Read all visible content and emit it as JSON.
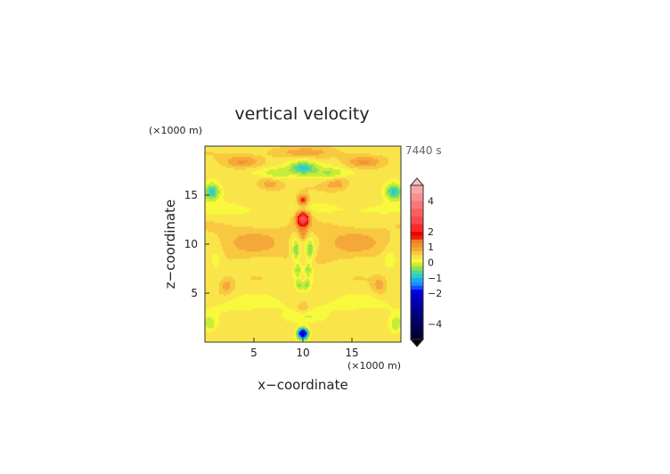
{
  "chart_data": {
    "type": "heatmap",
    "title": "vertical velocity",
    "time_label": "7440 s",
    "xlabel": "x−coordinate",
    "ylabel": "z−coordinate",
    "x_unit": "(×1000 m)",
    "y_unit": "(×1000 m)",
    "xlim": [
      0,
      20
    ],
    "ylim": [
      0,
      20
    ],
    "xticks": [
      5,
      10,
      15
    ],
    "yticks": [
      5,
      10,
      15
    ],
    "grid": false,
    "colorbar": {
      "levels": [
        -5,
        -4.5,
        -4,
        -3.5,
        -3,
        -2.5,
        -2,
        -1.75,
        -1.5,
        -1.25,
        -1,
        -0.75,
        -0.5,
        -0.25,
        0,
        0.25,
        0.5,
        0.75,
        1,
        1.25,
        1.5,
        1.75,
        2,
        2.5,
        3,
        3.5,
        4,
        4.5,
        5
      ],
      "colors": [
        "#000033",
        "#00004c",
        "#000066",
        "#000085",
        "#0000a6",
        "#0000c8",
        "#0000ee",
        "#1050ff",
        "#1e90ff",
        "#14b0ee",
        "#27ccd0",
        "#4ed6a0",
        "#94e04a",
        "#c8ec3a",
        "#f8f83c",
        "#f9e44a",
        "#f8c840",
        "#f5a83a",
        "#f3932e",
        "#f08025",
        "#ee2010",
        "#f00000",
        "#f82a2a",
        "#f84848",
        "#f86060",
        "#f87878",
        "#f89090",
        "#f8a8a8"
      ],
      "tick_labels": [
        "4",
        "2",
        "1",
        "0",
        "−1",
        "−2",
        "−4"
      ],
      "tick_values": [
        4,
        2,
        1,
        0,
        -1,
        -2,
        -4
      ]
    },
    "features": [
      {
        "x": 10,
        "z": 12.6,
        "w": 2.6,
        "sx": 0.45,
        "sz": 0.5
      },
      {
        "x": 10,
        "z": 14.5,
        "w": 1.4,
        "sx": 0.35,
        "sz": 0.35
      },
      {
        "x": 10,
        "z": 11.2,
        "w": 0.6,
        "sx": 0.35,
        "sz": 0.6
      },
      {
        "x": 10,
        "z": 6.2,
        "w": 0.8,
        "sx": 0.35,
        "sz": 0.6
      },
      {
        "x": 10,
        "z": 3.5,
        "w": 0.5,
        "sx": 0.4,
        "sz": 0.4
      },
      {
        "x": 10,
        "z": 0.9,
        "w": -3.0,
        "sx": 0.4,
        "sz": 0.4
      },
      {
        "x": 10,
        "z": 17.8,
        "w": -1.1,
        "sx": 1.0,
        "sz": 0.5
      },
      {
        "x": 9.3,
        "z": 9.4,
        "w": -0.9,
        "sx": 0.3,
        "sz": 0.8
      },
      {
        "x": 10.7,
        "z": 9.4,
        "w": -0.9,
        "sx": 0.3,
        "sz": 0.8
      },
      {
        "x": 9.5,
        "z": 7.4,
        "w": -0.7,
        "sx": 0.3,
        "sz": 0.5
      },
      {
        "x": 10.5,
        "z": 7.4,
        "w": -0.7,
        "sx": 0.3,
        "sz": 0.5
      },
      {
        "x": 9.7,
        "z": 5.9,
        "w": -1.0,
        "sx": 0.3,
        "sz": 0.5
      },
      {
        "x": 10.3,
        "z": 5.9,
        "w": -1.0,
        "sx": 0.3,
        "sz": 0.5
      },
      {
        "x": 10,
        "z": 2.6,
        "w": -0.3,
        "sx": 1.5,
        "sz": 0.4
      },
      {
        "x": 4.9,
        "z": 10.2,
        "w": 0.45,
        "sx": 2.6,
        "sz": 1.3
      },
      {
        "x": 15.1,
        "z": 10.2,
        "w": 0.45,
        "sx": 2.6,
        "sz": 1.3
      },
      {
        "x": 3.8,
        "z": 18.4,
        "w": 0.7,
        "sx": 1.4,
        "sz": 0.5
      },
      {
        "x": 16.2,
        "z": 18.4,
        "w": 0.7,
        "sx": 1.4,
        "sz": 0.5
      },
      {
        "x": 6.6,
        "z": 16.2,
        "w": 0.6,
        "sx": 0.9,
        "sz": 0.5
      },
      {
        "x": 13.4,
        "z": 16.2,
        "w": 0.6,
        "sx": 0.9,
        "sz": 0.5
      },
      {
        "x": 7.3,
        "z": 17.2,
        "w": -0.55,
        "sx": 1.0,
        "sz": 0.45
      },
      {
        "x": 12.7,
        "z": 17.2,
        "w": -0.55,
        "sx": 1.0,
        "sz": 0.45
      },
      {
        "x": 5.0,
        "z": 17.5,
        "w": -0.3,
        "sx": 1.8,
        "sz": 0.5
      },
      {
        "x": 15.0,
        "z": 17.5,
        "w": -0.3,
        "sx": 1.8,
        "sz": 0.5
      },
      {
        "x": 0.7,
        "z": 15.4,
        "w": -1.3,
        "sx": 0.6,
        "sz": 0.6
      },
      {
        "x": 19.3,
        "z": 15.4,
        "w": -1.3,
        "sx": 0.6,
        "sz": 0.6
      },
      {
        "x": 0.5,
        "z": 1.8,
        "w": -0.6,
        "sx": 0.5,
        "sz": 0.6
      },
      {
        "x": 19.5,
        "z": 1.8,
        "w": -0.6,
        "sx": 0.5,
        "sz": 0.6
      },
      {
        "x": 2.2,
        "z": 5.8,
        "w": 0.5,
        "sx": 0.5,
        "sz": 0.6
      },
      {
        "x": 17.8,
        "z": 5.8,
        "w": 0.5,
        "sx": 0.5,
        "sz": 0.6
      },
      {
        "x": 1.1,
        "z": 8.5,
        "w": -0.4,
        "sx": 0.5,
        "sz": 0.7
      },
      {
        "x": 18.9,
        "z": 8.5,
        "w": -0.4,
        "sx": 0.5,
        "sz": 0.7
      },
      {
        "x": 4.5,
        "z": 3.8,
        "w": -0.25,
        "sx": 3.0,
        "sz": 0.6
      },
      {
        "x": 15.5,
        "z": 3.8,
        "w": -0.25,
        "sx": 3.0,
        "sz": 0.6
      },
      {
        "x": 4.0,
        "z": 13.6,
        "w": -0.25,
        "sx": 3.0,
        "sz": 0.6
      },
      {
        "x": 16.0,
        "z": 13.6,
        "w": -0.25,
        "sx": 3.0,
        "sz": 0.6
      },
      {
        "x": 10,
        "z": 19.4,
        "w": 0.4,
        "sx": 3.0,
        "sz": 0.4
      }
    ]
  }
}
